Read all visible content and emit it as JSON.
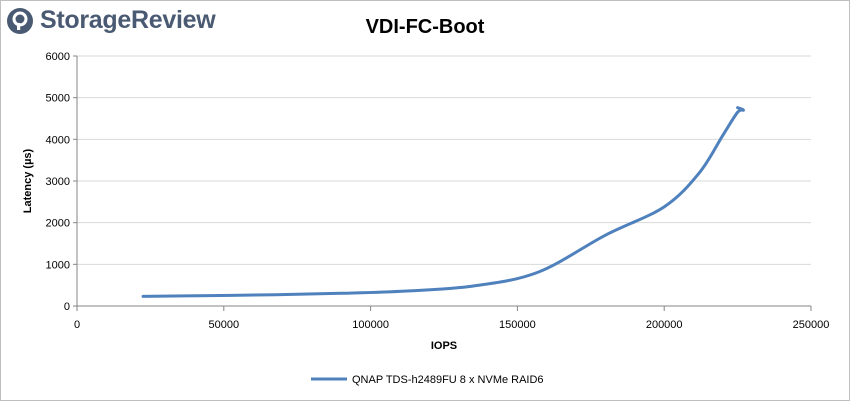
{
  "brand": {
    "name": "StorageReview"
  },
  "chart_data": {
    "type": "line",
    "title": "VDI-FC-Boot",
    "xlabel": "IOPS",
    "ylabel": "Latency (µs)",
    "xlim": [
      0,
      250000
    ],
    "ylim": [
      0,
      6000
    ],
    "xticks": [
      0,
      50000,
      100000,
      150000,
      200000,
      250000
    ],
    "yticks": [
      0,
      1000,
      2000,
      3000,
      4000,
      5000,
      6000
    ],
    "grid": {
      "x": false,
      "y": true
    },
    "legend": "bottom",
    "series": [
      {
        "name": "QNAP TDS-h2489FU 8 x NVMe RAID6",
        "color": "#4f81bd",
        "x": [
          22500,
          45000,
          67500,
          90000,
          112500,
          135000,
          157000,
          180000,
          200000,
          212000,
          220000,
          225000,
          227000,
          225000
        ],
        "y": [
          230,
          250,
          270,
          305,
          360,
          480,
          810,
          1700,
          2380,
          3200,
          4100,
          4650,
          4700,
          4760
        ]
      }
    ]
  }
}
